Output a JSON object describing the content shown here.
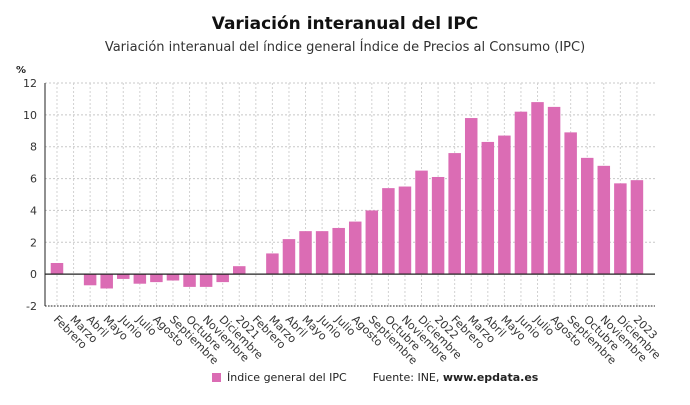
{
  "chart_data": {
    "type": "bar",
    "title": "Variación interanual del IPC",
    "subtitle": "Variación interanual del índice general Índice de Precios al Consumo (IPC)",
    "ylabel": "%",
    "ylim": [
      -2,
      12
    ],
    "yticks": [
      -2,
      0,
      2,
      4,
      6,
      8,
      10,
      12
    ],
    "grid": true,
    "legend_placement": "bottom",
    "bar_color": "#db6cb4",
    "categories": [
      "Febrero",
      "Marzo",
      "Abril",
      "Mayo",
      "Junio",
      "Julio",
      "Agosto",
      "Septiembre",
      "Octubre",
      "Noviembre",
      "Diciembre",
      "2021",
      "Febrero",
      "Marzo",
      "Abril",
      "Mayo",
      "Junio",
      "Julio",
      "Agosto",
      "Septiembre",
      "Octubre",
      "Noviembre",
      "Diciembre",
      "2022",
      "Febrero",
      "Marzo",
      "Abril",
      "Mayo",
      "Junio",
      "Julio",
      "Agosto",
      "Septiembre",
      "Octubre",
      "Noviembre",
      "Diciembre",
      "2023"
    ],
    "series": [
      {
        "name": "Índice general del IPC",
        "values": [
          0.7,
          0.0,
          -0.7,
          -0.9,
          -0.3,
          -0.6,
          -0.5,
          -0.4,
          -0.8,
          -0.8,
          -0.5,
          0.5,
          0.0,
          1.3,
          2.2,
          2.7,
          2.7,
          2.9,
          3.3,
          4.0,
          5.4,
          5.5,
          6.5,
          6.1,
          7.6,
          9.8,
          8.3,
          8.7,
          10.2,
          10.8,
          10.5,
          8.9,
          7.3,
          6.8,
          5.7,
          5.9
        ]
      }
    ]
  },
  "legend": {
    "label": "Índice general del IPC"
  },
  "source": {
    "prefix": "Fuente: INE,",
    "site": "www.epdata.es"
  }
}
